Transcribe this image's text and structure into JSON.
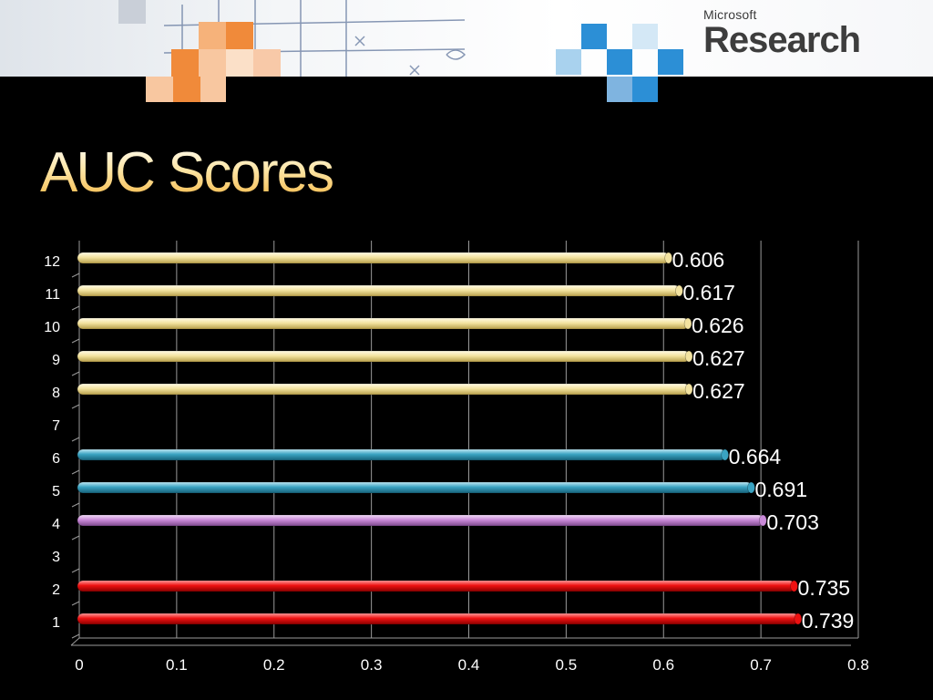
{
  "slide": {
    "title": "AUC Scores",
    "logo_small": "Microsoft",
    "logo_big": "Research"
  },
  "colors": {
    "cream": "#f3e3a0",
    "teal": "#3aa3c2",
    "violet": "#c98ad8",
    "red": "#ee1111",
    "blue_tile": "#2c8fd6",
    "orange_tile": "#f08a3a",
    "background": "#000000"
  },
  "chart_data": {
    "type": "bar",
    "orientation": "horizontal",
    "categories": [
      "1",
      "2",
      "3",
      "4",
      "5",
      "6",
      "7",
      "8",
      "9",
      "10",
      "11",
      "12"
    ],
    "values": [
      0.739,
      0.735,
      null,
      0.703,
      0.691,
      0.664,
      null,
      0.627,
      0.627,
      0.626,
      0.617,
      0.606
    ],
    "value_labels": [
      "0.739",
      "0.735",
      "",
      "0.703",
      "0.691",
      "0.664",
      "",
      "0.627",
      "0.627",
      "0.626",
      "0.617",
      "0.606"
    ],
    "bar_colors": [
      "red",
      "red",
      "",
      "violet",
      "teal",
      "teal",
      "",
      "cream",
      "cream",
      "cream",
      "cream",
      "cream"
    ],
    "xlim": [
      0,
      0.8
    ],
    "xticks": [
      "0",
      "0.1",
      "0.2",
      "0.3",
      "0.4",
      "0.5",
      "0.6",
      "0.7",
      "0.8"
    ],
    "grid": true,
    "title": "",
    "xlabel": "",
    "ylabel": ""
  }
}
